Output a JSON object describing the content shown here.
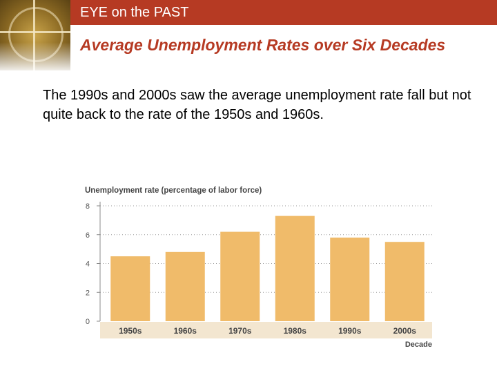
{
  "header": {
    "title": "EYE on the PAST"
  },
  "slide": {
    "title": "Average Unemployment Rates over Six Decades",
    "body": "The 1990s and 2000s saw the average unemployment rate fall but not quite back to the rate of the 1950s and 1960s."
  },
  "colors": {
    "header": "#b63a23",
    "title": "#b63a23",
    "bar": "#f0bb6a",
    "x_band": "#f3e6d0"
  },
  "icons": {
    "logo": "eye-on-the-past-logo"
  },
  "chart_data": {
    "type": "bar",
    "title": "",
    "ylabel": "Unemployment rate (percentage of labor force)",
    "xlabel": "Decade",
    "categories": [
      "1950s",
      "1960s",
      "1970s",
      "1980s",
      "1990s",
      "2000s"
    ],
    "values": [
      4.5,
      4.8,
      6.2,
      7.3,
      5.8,
      5.5
    ],
    "ylim": [
      0,
      8
    ],
    "yticks": [
      0,
      2,
      4,
      6,
      8
    ],
    "ytick_labels": [
      "0",
      "2",
      "4",
      "6",
      "8"
    ],
    "grid": true,
    "grid_style": "dotted"
  }
}
